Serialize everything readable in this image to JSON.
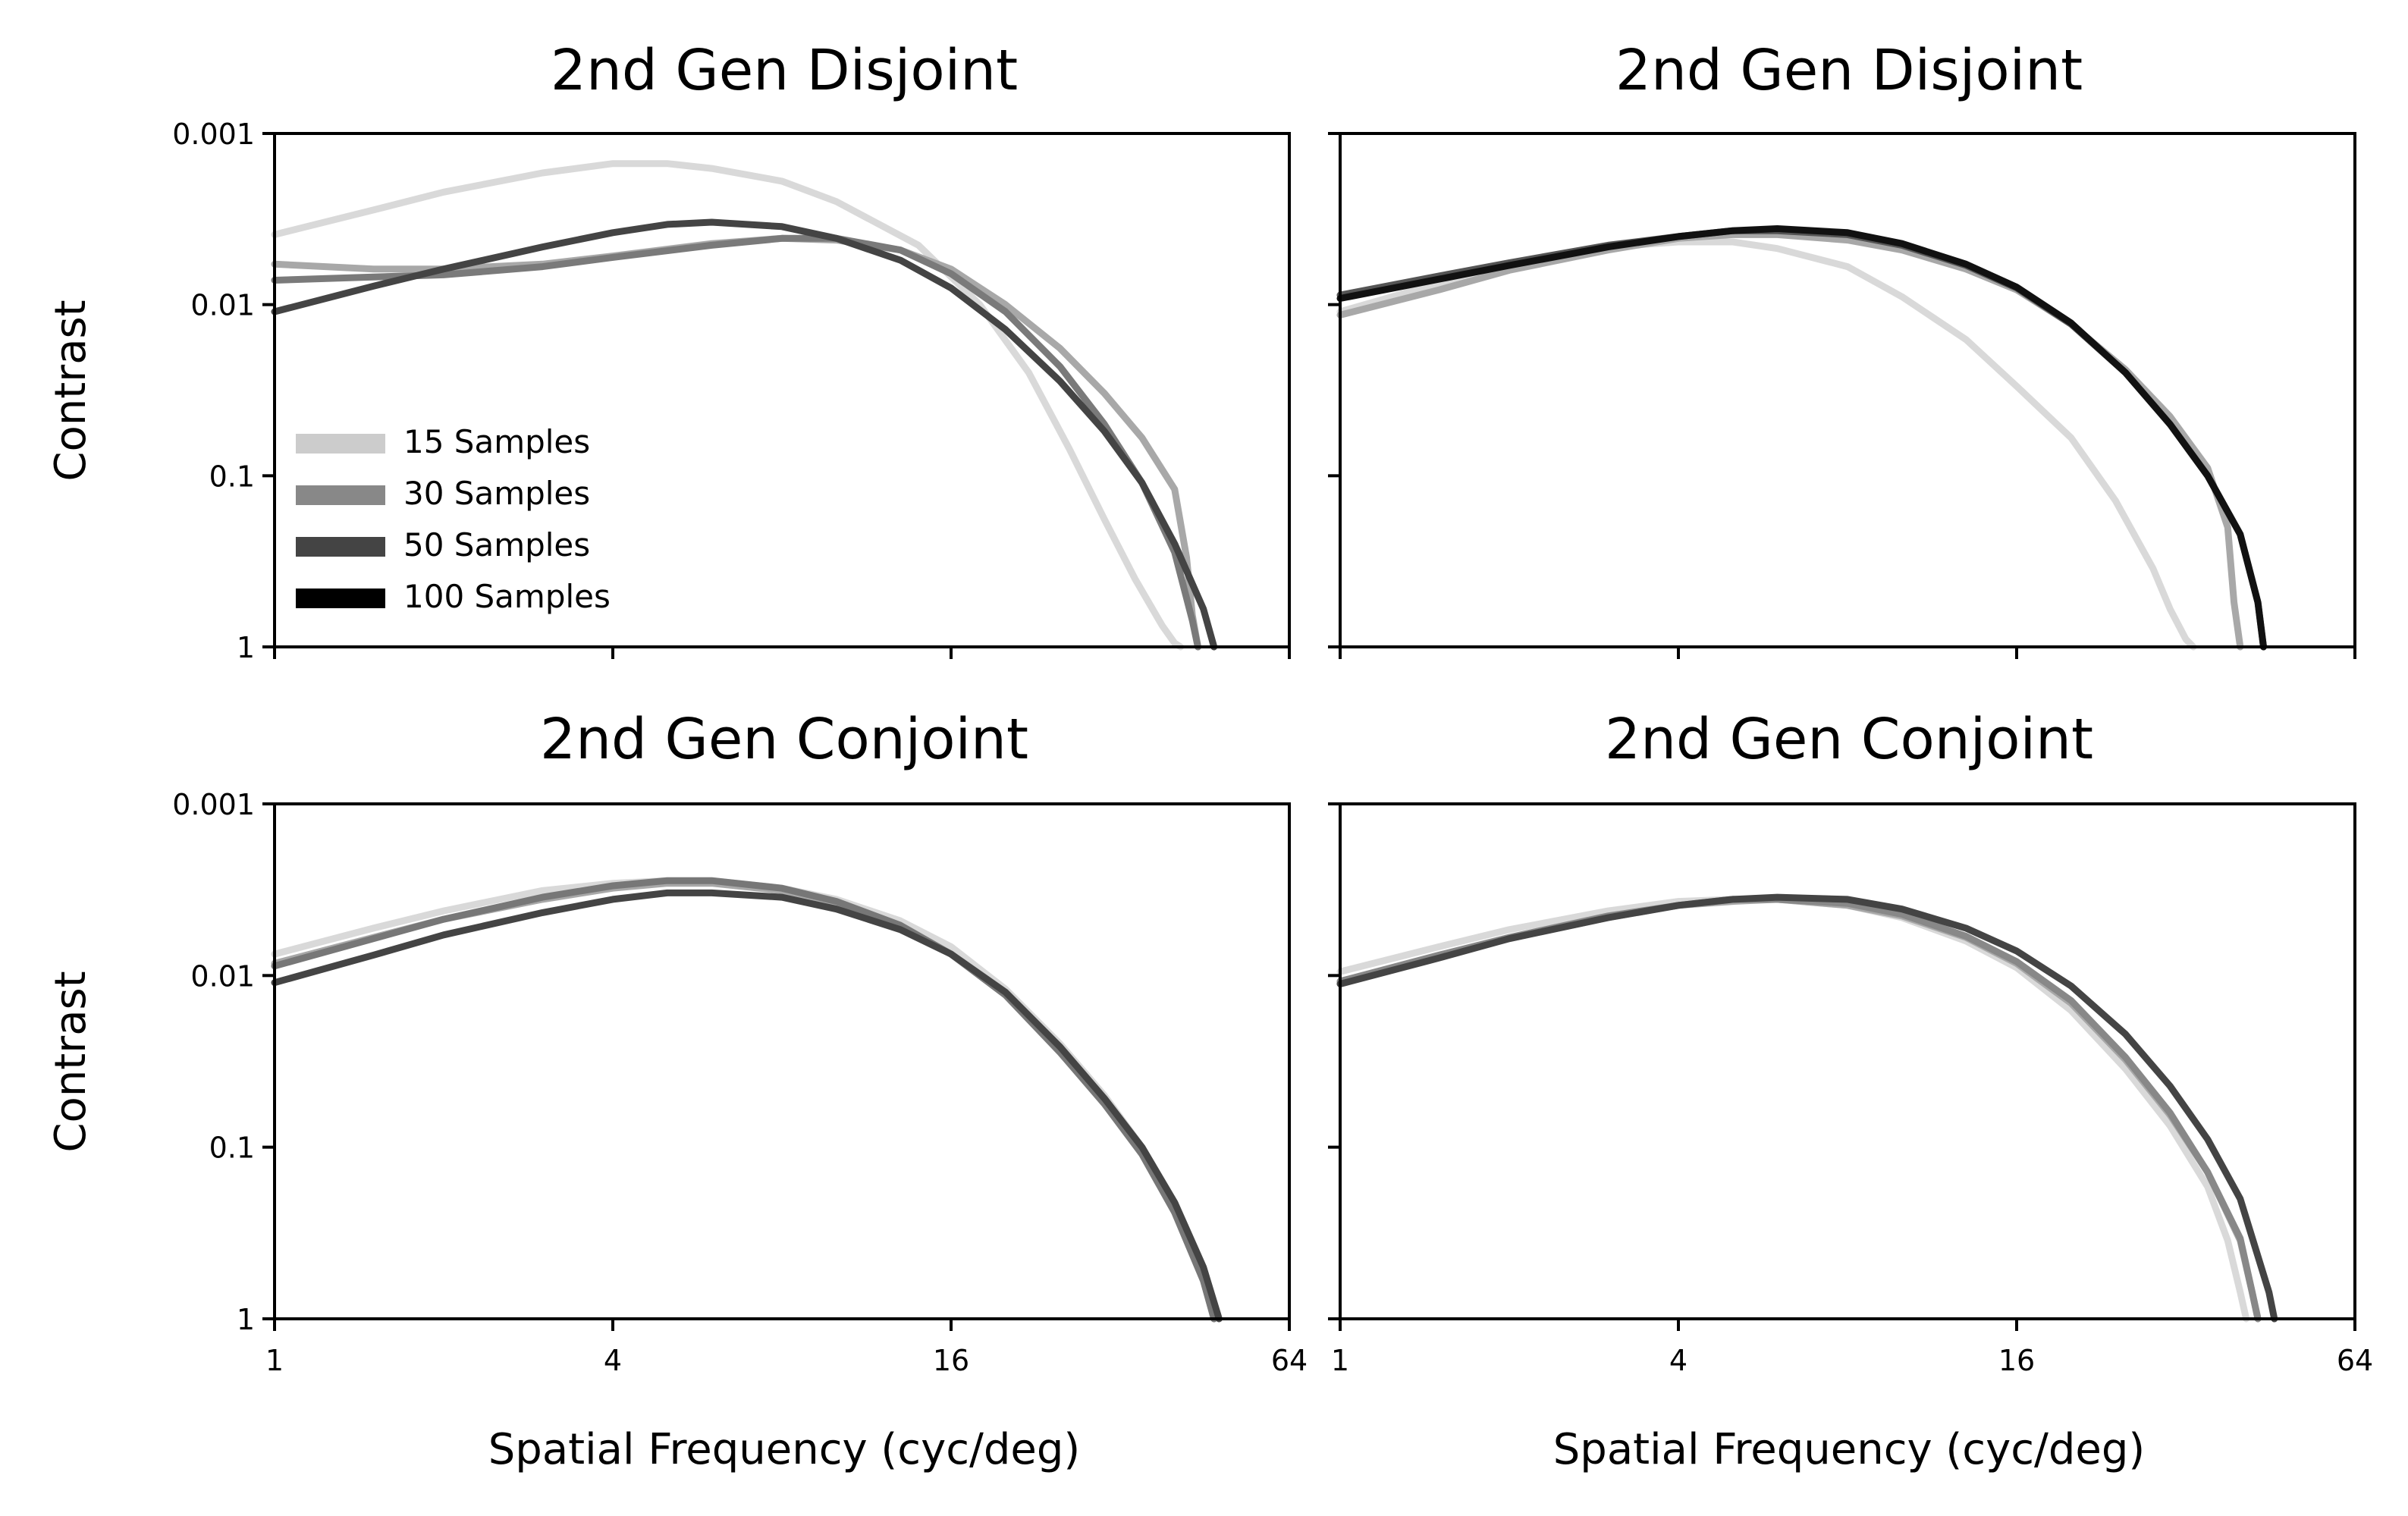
{
  "figure": {
    "shared_xlabel": "Spatial Frequency (cyc/deg)",
    "shared_ylabel": "Contrast",
    "x_tick_labels": [
      "1",
      "4",
      "16",
      "64"
    ],
    "y_tick_labels": [
      "0.001",
      "0.01",
      "0.1",
      "1"
    ]
  },
  "legend": {
    "placement": "lower-left of top-left panel",
    "entries": [
      {
        "label": "15 Samples",
        "color": "#cccccc"
      },
      {
        "label": "30 Samples",
        "color": "#888888"
      },
      {
        "label": "50 Samples",
        "color": "#444444"
      },
      {
        "label": "100 Samples",
        "color": "#000000"
      }
    ]
  },
  "chart_data": [
    {
      "type": "line",
      "title": "2nd Gen Disjoint",
      "xlabel": "",
      "ylabel": "Contrast",
      "xscale": "log2",
      "yscale": "log",
      "yaxis_inverted": true,
      "xlim": [
        1,
        64
      ],
      "ylim": [
        1,
        0.001
      ],
      "x_ticks": [
        1,
        4,
        16,
        64
      ],
      "y_ticks": [
        0.001,
        0.01,
        0.1,
        1
      ],
      "show_x_ticklabels": false,
      "show_y_ticklabels": true,
      "grid": false,
      "series": [
        {
          "name": "15 Samples",
          "color": "#d9d9d9",
          "opacity": 1,
          "x": [
            1,
            1.5,
            2,
            3,
            4,
            5,
            6,
            8,
            10,
            14,
            18,
            22,
            26,
            30,
            34,
            38,
            40,
            41
          ],
          "y": [
            0.0039,
            0.0028,
            0.0022,
            0.0017,
            0.0015,
            0.0015,
            0.0016,
            0.0019,
            0.0025,
            0.0045,
            0.01,
            0.025,
            0.07,
            0.18,
            0.4,
            0.75,
            0.95,
            1
          ]
        },
        {
          "name": "30 Samples",
          "color": "#a8a8a8",
          "opacity": 1,
          "x": [
            1,
            1.5,
            2,
            3,
            4,
            6,
            8,
            10,
            13,
            16,
            20,
            25,
            30,
            35,
            40,
            42,
            43,
            44
          ],
          "y": [
            0.0058,
            0.0062,
            0.0062,
            0.0058,
            0.0052,
            0.0044,
            0.0041,
            0.0042,
            0.0048,
            0.0062,
            0.01,
            0.018,
            0.033,
            0.06,
            0.12,
            0.3,
            0.65,
            1
          ]
        },
        {
          "name": "50 Samples",
          "color": "#7a7a7a",
          "opacity": 1,
          "x": [
            1,
            1.5,
            2,
            3,
            4,
            6,
            8,
            10,
            13,
            16,
            20,
            25,
            30,
            35,
            40,
            43,
            44
          ],
          "y": [
            0.0072,
            0.0069,
            0.0067,
            0.006,
            0.0053,
            0.0045,
            0.0041,
            0.0041,
            0.0048,
            0.0066,
            0.011,
            0.023,
            0.05,
            0.11,
            0.28,
            0.7,
            1
          ]
        },
        {
          "name": "100 Samples",
          "color": "#444444",
          "opacity": 1,
          "x": [
            1,
            1.5,
            2,
            3,
            4,
            5,
            6,
            8,
            10,
            13,
            16,
            20,
            25,
            30,
            35,
            40,
            45,
            47
          ],
          "y": [
            0.011,
            0.0078,
            0.0062,
            0.0046,
            0.0038,
            0.0034,
            0.0033,
            0.0035,
            0.0041,
            0.0055,
            0.008,
            0.014,
            0.028,
            0.055,
            0.11,
            0.25,
            0.6,
            1
          ]
        }
      ]
    },
    {
      "type": "line",
      "title": "2nd Gen Disjoint",
      "xlabel": "",
      "ylabel": "",
      "xscale": "log2",
      "yscale": "log",
      "yaxis_inverted": true,
      "xlim": [
        1,
        64
      ],
      "ylim": [
        1,
        0.001
      ],
      "x_ticks": [
        1,
        4,
        16,
        64
      ],
      "y_ticks": [
        0.001,
        0.01,
        0.1,
        1
      ],
      "show_x_ticklabels": false,
      "show_y_ticklabels": false,
      "grid": false,
      "series": [
        {
          "name": "15 Samples",
          "color": "#d9d9d9",
          "opacity": 1,
          "x": [
            1,
            1.5,
            2,
            3,
            4,
            5,
            6,
            8,
            10,
            13,
            16,
            20,
            24,
            28,
            30,
            32,
            33
          ],
          "y": [
            0.011,
            0.0075,
            0.0058,
            0.0046,
            0.0043,
            0.0043,
            0.0047,
            0.006,
            0.009,
            0.016,
            0.03,
            0.06,
            0.14,
            0.35,
            0.6,
            0.9,
            1
          ]
        },
        {
          "name": "30 Samples",
          "color": "#a8a8a8",
          "opacity": 1,
          "x": [
            1,
            1.5,
            2,
            3,
            4,
            5,
            6,
            8,
            10,
            13,
            16,
            20,
            25,
            30,
            35,
            38,
            39,
            40
          ],
          "y": [
            0.0115,
            0.0082,
            0.0063,
            0.0048,
            0.0041,
            0.0039,
            0.0039,
            0.0042,
            0.0048,
            0.0062,
            0.0082,
            0.013,
            0.024,
            0.045,
            0.09,
            0.2,
            0.55,
            1
          ]
        },
        {
          "name": "50 Samples",
          "color": "#555555",
          "opacity": 1,
          "x": [
            1,
            1.5,
            2,
            3,
            4,
            5,
            6,
            8,
            10,
            13,
            16,
            20,
            25,
            30,
            35,
            40,
            43,
            44
          ],
          "y": [
            0.0088,
            0.0068,
            0.0057,
            0.0045,
            0.004,
            0.0037,
            0.0037,
            0.0039,
            0.0045,
            0.0059,
            0.008,
            0.013,
            0.025,
            0.05,
            0.1,
            0.22,
            0.55,
            1
          ]
        },
        {
          "name": "100 Samples",
          "color": "#111111",
          "opacity": 1,
          "x": [
            1,
            1.5,
            2,
            3,
            4,
            5,
            6,
            8,
            10,
            13,
            16,
            20,
            25,
            30,
            35,
            40,
            43,
            44
          ],
          "y": [
            0.0092,
            0.0071,
            0.0059,
            0.0046,
            0.004,
            0.0037,
            0.0036,
            0.0038,
            0.0044,
            0.0058,
            0.0079,
            0.0128,
            0.025,
            0.05,
            0.1,
            0.22,
            0.55,
            1
          ]
        }
      ]
    },
    {
      "type": "line",
      "title": "2nd Gen Conjoint",
      "xlabel": "Spatial Frequency (cyc/deg)",
      "ylabel": "Contrast",
      "xscale": "log2",
      "yscale": "log",
      "yaxis_inverted": true,
      "xlim": [
        1,
        64
      ],
      "ylim": [
        1,
        0.001
      ],
      "x_ticks": [
        1,
        4,
        16,
        64
      ],
      "y_ticks": [
        0.001,
        0.01,
        0.1,
        1
      ],
      "show_x_ticklabels": true,
      "show_y_ticklabels": true,
      "grid": false,
      "series": [
        {
          "name": "15 Samples",
          "color": "#d9d9d9",
          "opacity": 1,
          "x": [
            1,
            1.5,
            2,
            3,
            4,
            5,
            6,
            8,
            10,
            13,
            16,
            20,
            25,
            30,
            35,
            40,
            45,
            47
          ],
          "y": [
            0.0075,
            0.0053,
            0.0042,
            0.0032,
            0.0029,
            0.0028,
            0.0028,
            0.0031,
            0.0036,
            0.0048,
            0.0068,
            0.012,
            0.025,
            0.05,
            0.1,
            0.22,
            0.55,
            1
          ]
        },
        {
          "name": "30 Samples",
          "color": "#a8a8a8",
          "opacity": 1,
          "x": [
            1,
            1.5,
            2,
            3,
            4,
            5,
            6,
            8,
            10,
            13,
            16,
            20,
            25,
            30,
            35,
            40,
            45,
            47
          ],
          "y": [
            0.0085,
            0.006,
            0.0047,
            0.0036,
            0.0031,
            0.0029,
            0.0029,
            0.0032,
            0.0038,
            0.0052,
            0.0075,
            0.013,
            0.028,
            0.055,
            0.11,
            0.24,
            0.6,
            1
          ]
        },
        {
          "name": "50 Samples",
          "color": "#777777",
          "opacity": 1,
          "x": [
            1,
            1.5,
            2,
            3,
            4,
            5,
            6,
            8,
            10,
            13,
            16,
            20,
            25,
            30,
            35,
            40,
            45,
            47
          ],
          "y": [
            0.0088,
            0.0061,
            0.0047,
            0.0035,
            0.003,
            0.0028,
            0.0028,
            0.0031,
            0.0037,
            0.0051,
            0.0075,
            0.013,
            0.028,
            0.056,
            0.11,
            0.24,
            0.6,
            1
          ]
        },
        {
          "name": "100 Samples",
          "color": "#444444",
          "opacity": 1,
          "x": [
            1,
            1.5,
            2,
            3,
            4,
            5,
            6,
            8,
            10,
            13,
            16,
            20,
            25,
            30,
            35,
            40,
            45,
            48
          ],
          "y": [
            0.011,
            0.0076,
            0.0058,
            0.0043,
            0.0036,
            0.0033,
            0.0033,
            0.0035,
            0.0041,
            0.0054,
            0.0075,
            0.0125,
            0.026,
            0.052,
            0.1,
            0.21,
            0.5,
            1
          ]
        }
      ]
    },
    {
      "type": "line",
      "title": "2nd Gen Conjoint",
      "xlabel": "Spatial Frequency (cyc/deg)",
      "ylabel": "",
      "xscale": "log2",
      "yscale": "log",
      "yaxis_inverted": true,
      "xlim": [
        1,
        64
      ],
      "ylim": [
        1,
        0.001
      ],
      "x_ticks": [
        1,
        4,
        16,
        64
      ],
      "y_ticks": [
        0.001,
        0.01,
        0.1,
        1
      ],
      "show_x_ticklabels": true,
      "show_y_ticklabels": false,
      "grid": false,
      "series": [
        {
          "name": "15 Samples",
          "color": "#d9d9d9",
          "opacity": 1,
          "x": [
            1,
            1.5,
            2,
            3,
            4,
            5,
            6,
            8,
            10,
            13,
            16,
            20,
            25,
            30,
            35,
            38,
            40,
            41
          ],
          "y": [
            0.0095,
            0.0068,
            0.0054,
            0.0042,
            0.0037,
            0.0036,
            0.0036,
            0.0039,
            0.0046,
            0.0063,
            0.009,
            0.016,
            0.035,
            0.075,
            0.17,
            0.35,
            0.7,
            1
          ]
        },
        {
          "name": "30 Samples",
          "color": "#a8a8a8",
          "opacity": 1,
          "x": [
            1,
            1.5,
            2,
            3,
            4,
            5,
            6,
            8,
            10,
            13,
            16,
            20,
            25,
            30,
            35,
            40,
            42,
            43
          ],
          "y": [
            0.011,
            0.0078,
            0.0061,
            0.0046,
            0.0039,
            0.0037,
            0.0036,
            0.0039,
            0.0045,
            0.006,
            0.0085,
            0.0145,
            0.031,
            0.065,
            0.14,
            0.35,
            0.7,
            1
          ]
        },
        {
          "name": "50 Samples",
          "color": "#888888",
          "opacity": 1,
          "x": [
            1,
            1.5,
            2,
            3,
            4,
            5,
            6,
            8,
            10,
            13,
            16,
            20,
            25,
            30,
            35,
            40,
            42,
            43
          ],
          "y": [
            0.0108,
            0.0076,
            0.006,
            0.0045,
            0.0039,
            0.0036,
            0.0036,
            0.0038,
            0.0044,
            0.0059,
            0.0083,
            0.014,
            0.03,
            0.063,
            0.14,
            0.34,
            0.7,
            1
          ]
        },
        {
          "name": "100 Samples",
          "color": "#444444",
          "opacity": 1,
          "x": [
            1,
            1.5,
            2,
            3,
            4,
            5,
            6,
            8,
            10,
            13,
            16,
            20,
            25,
            30,
            35,
            40,
            45,
            46
          ],
          "y": [
            0.0112,
            0.0079,
            0.0061,
            0.0046,
            0.0039,
            0.0036,
            0.0035,
            0.0036,
            0.0041,
            0.0053,
            0.0072,
            0.0115,
            0.022,
            0.044,
            0.09,
            0.2,
            0.7,
            1
          ]
        }
      ]
    }
  ]
}
